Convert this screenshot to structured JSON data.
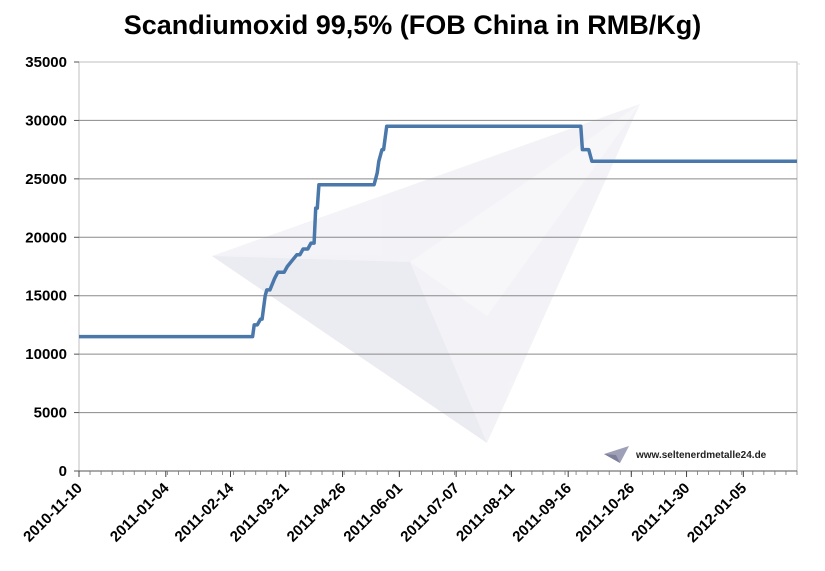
{
  "chart_data": {
    "type": "line",
    "title": "Scandiumoxid 99,5% (FOB China in RMB/Kg)",
    "xlabel": "",
    "ylabel": "",
    "ylim": [
      0,
      35000
    ],
    "yticks": [
      "0",
      "5000",
      "10000",
      "15000",
      "20000",
      "25000",
      "30000",
      "35000"
    ],
    "xlim": [
      "2010-11-10",
      "2012-02-08"
    ],
    "xticks": [
      "2010-11-10",
      "2011-01-04",
      "2011-02-14",
      "2011-03-21",
      "2011-04-26",
      "2011-06-01",
      "2011-07-07",
      "2011-08-11",
      "2011-09-16",
      "2011-10-26",
      "2011-11-30",
      "2012-01-05"
    ],
    "grid": "horizontal",
    "line_color": "#4a78aa",
    "series": [
      {
        "x": [
          "2010-11-10",
          "2011-02-28",
          "2011-03-01",
          "2011-03-03",
          "2011-03-05",
          "2011-03-06",
          "2011-03-08",
          "2011-03-09",
          "2011-03-11",
          "2011-03-14",
          "2011-03-16",
          "2011-03-18",
          "2011-03-20",
          "2011-03-22",
          "2011-03-25",
          "2011-03-28",
          "2011-03-30",
          "2011-04-01",
          "2011-04-04",
          "2011-04-06",
          "2011-04-08",
          "2011-04-09",
          "2011-04-10",
          "2011-04-11",
          "2011-04-13",
          "2011-04-14",
          "2011-05-16",
          "2011-05-18",
          "2011-05-19",
          "2011-05-21",
          "2011-05-22",
          "2011-05-24",
          "2011-05-27",
          "2011-09-24",
          "2011-09-25",
          "2011-09-29",
          "2011-10-01",
          "2012-02-08"
        ],
        "y": [
          11500,
          11500,
          12500,
          12500,
          13000,
          13000,
          15000,
          15500,
          15500,
          16500,
          17000,
          17000,
          17000,
          17500,
          18000,
          18500,
          18500,
          19000,
          19000,
          19500,
          19500,
          22500,
          22500,
          24500,
          24500,
          24500,
          24500,
          25500,
          26500,
          27500,
          27500,
          29500,
          29500,
          29500,
          27500,
          27500,
          26500,
          26500
        ]
      }
    ]
  },
  "watermark": {
    "text": "www.seltenerdmetalle24.de",
    "icon": "arrow-logo-icon"
  }
}
